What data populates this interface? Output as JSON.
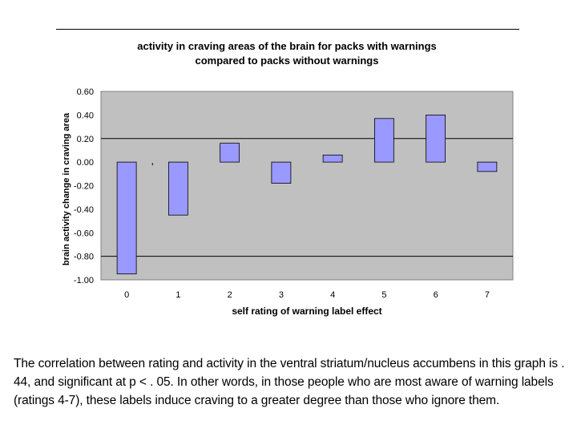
{
  "chart_data": {
    "type": "bar",
    "title_lines": [
      "activity in craving areas of the brain for packs with warnings",
      "compared to packs without warnings"
    ],
    "xlabel": "self rating of warning label effect",
    "ylabel": "brain activity change in craving area",
    "categories": [
      "0",
      "1",
      "2",
      "3",
      "4",
      "5",
      "6",
      "7"
    ],
    "values": [
      -0.95,
      -0.45,
      0.16,
      -0.18,
      0.06,
      0.37,
      0.4,
      -0.08
    ],
    "ylim": [
      -1.0,
      0.6
    ],
    "yticks": [
      "0.60",
      "0.40",
      "0.20",
      "0.00",
      "-0.20",
      "-0.40",
      "-0.60",
      "-0.80",
      "-1.00"
    ],
    "ytick_values": [
      0.6,
      0.4,
      0.2,
      0.0,
      -0.2,
      -0.4,
      -0.6,
      -0.8,
      -1.0
    ],
    "gridlines": [
      0.2,
      -0.8
    ],
    "colors": {
      "bar": "#9999ff",
      "plot_bg": "#c0c0c0"
    }
  },
  "caption": "The correlation between rating and activity in the ventral striatum/nucleus accumbens in this graph is . 44, and significant at p < . 05. In other words, in those people who are most aware of warning labels (ratings 4-7), these labels induce craving to a greater degree than those who ignore them."
}
